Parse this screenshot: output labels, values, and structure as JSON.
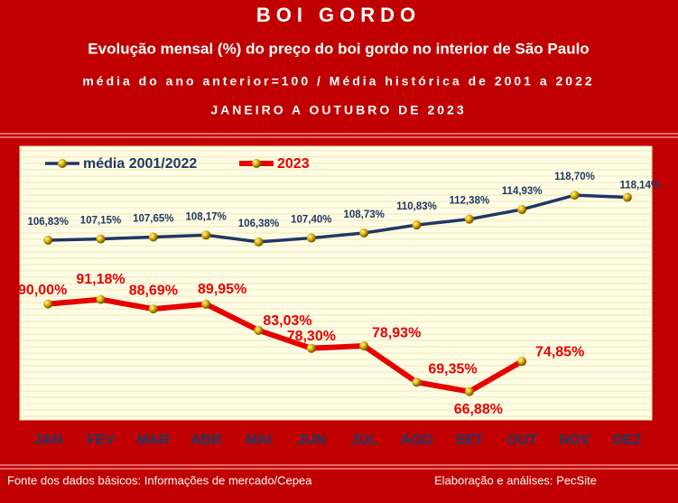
{
  "chart_data": {
    "type": "line",
    "title": "BOI GORDO",
    "subtitles": [
      "Evolução mensal (%) do preço do boi gordo no interior de São Paulo",
      "média do ano anterior=100 / Média histórica de 2001 a 2022",
      "JANEIRO A OUTUBRO DE 2023"
    ],
    "categories": [
      "JAN",
      "FEV",
      "MAR",
      "ABR",
      "MAI",
      "JUN",
      "JUL",
      "AGO",
      "SET",
      "OUT",
      "NOV",
      "DEZ"
    ],
    "series": [
      {
        "name": "média 2001/2022",
        "color": "#1f3864",
        "values": [
          106.83,
          107.15,
          107.65,
          108.17,
          106.38,
          107.4,
          108.73,
          110.83,
          112.38,
          114.93,
          118.7,
          118.14
        ],
        "value_labels": [
          "106,83%",
          "107,15%",
          "107,65%",
          "108,17%",
          "106,38%",
          "107,40%",
          "108,73%",
          "110,83%",
          "112,38%",
          "114,93%",
          "118,70%",
          "118,14%"
        ]
      },
      {
        "name": "2023",
        "color": "#e60000",
        "values": [
          90.0,
          91.18,
          88.69,
          89.95,
          83.03,
          78.3,
          78.93,
          69.35,
          66.88,
          74.85,
          null,
          null
        ],
        "value_labels": [
          "90,00%",
          "91,18%",
          "88,69%",
          "89,95%",
          "83,03%",
          "78,30%",
          "78,93%",
          "69,35%",
          "66,88%",
          "74,85%",
          null,
          null
        ]
      }
    ],
    "ylim": [
      59.4,
      131.6
    ]
  },
  "footer": {
    "source": "Fonte dos dados básicos: Informações de mercado/Cepea",
    "credit": "Elaboração e análises: PecSite"
  }
}
